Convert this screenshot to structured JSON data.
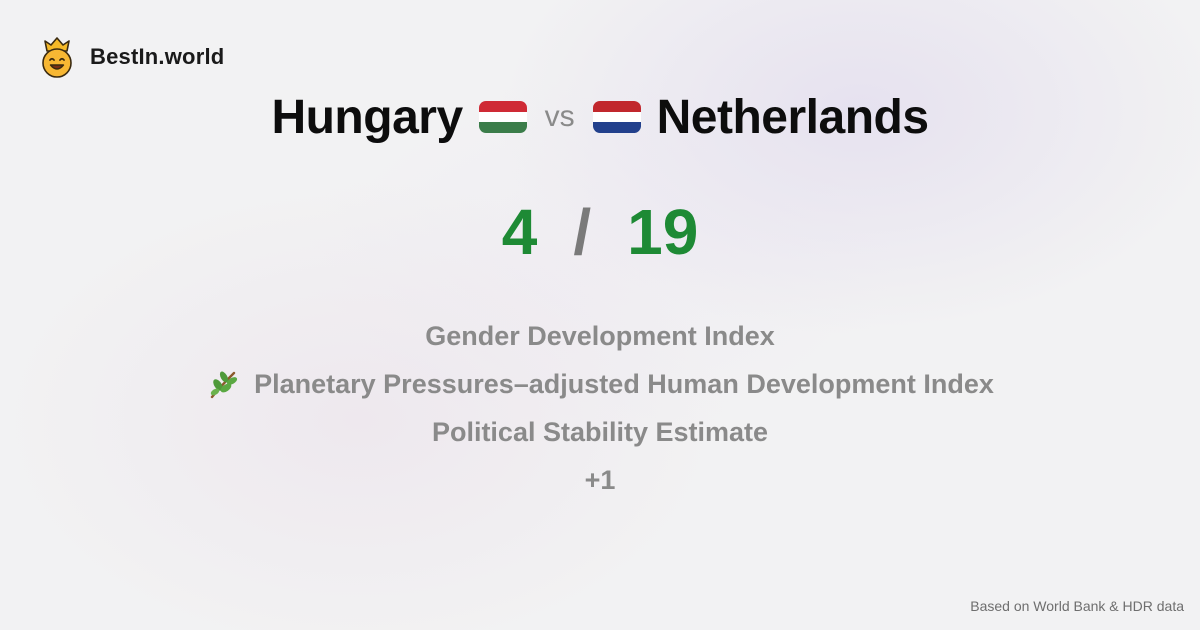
{
  "brand": {
    "name": "BestIn.world",
    "logo_icon": "crown-smiley-icon"
  },
  "comparison": {
    "left_country": "Hungary",
    "left_flag": "hungary-flag-icon",
    "vs_label": "vs",
    "right_country": "Netherlands",
    "right_flag": "netherlands-flag-icon"
  },
  "score": {
    "left": "4",
    "separator": "/",
    "right": "19",
    "color": "#1e8a35"
  },
  "metrics": [
    {
      "label": "Gender Development Index",
      "icon": ""
    },
    {
      "label": "Planetary Pressures–adjusted Human Development Index",
      "icon": "herb-icon"
    },
    {
      "label": "Political Stability Estimate",
      "icon": ""
    },
    {
      "label": "+1",
      "icon": ""
    }
  ],
  "footer": {
    "source": "Based on World Bank & HDR data"
  },
  "colors": {
    "hungary_red": "#cf2a35",
    "hungary_white": "#ffffff",
    "hungary_green": "#3b7d4a",
    "netherlands_red": "#c1272d",
    "netherlands_white": "#ffffff",
    "netherlands_blue": "#22408c"
  }
}
